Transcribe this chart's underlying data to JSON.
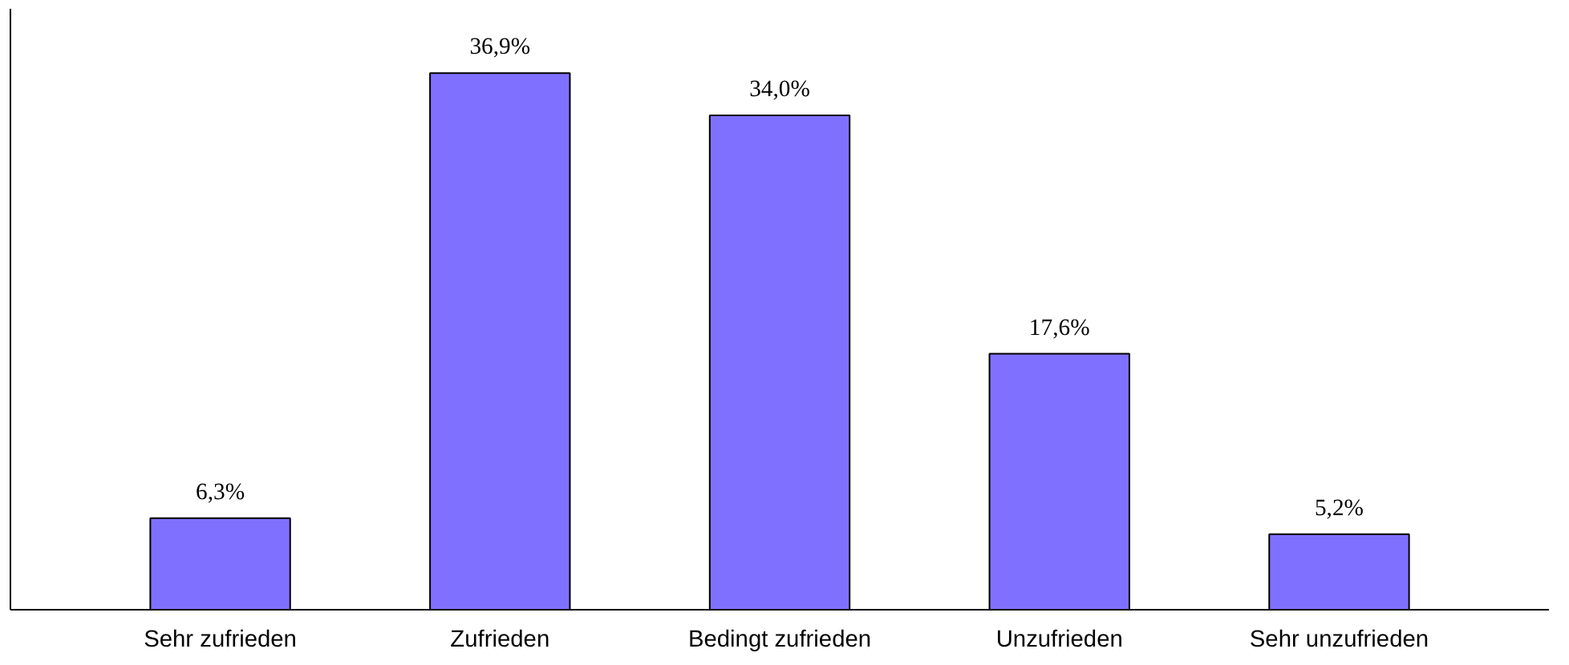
{
  "chart_data": {
    "type": "bar",
    "categories": [
      "Sehr zufrieden",
      "Zufrieden",
      "Bedingt zufrieden",
      "Unzufrieden",
      "Sehr unzufrieden"
    ],
    "values": [
      6.3,
      36.9,
      34.0,
      17.6,
      5.2
    ],
    "value_labels": [
      "6,3%",
      "36,9%",
      "34,0%",
      "17,6%",
      "5,2%"
    ],
    "color": "#8070ff",
    "tick_labels": "x",
    "grid": false
  }
}
